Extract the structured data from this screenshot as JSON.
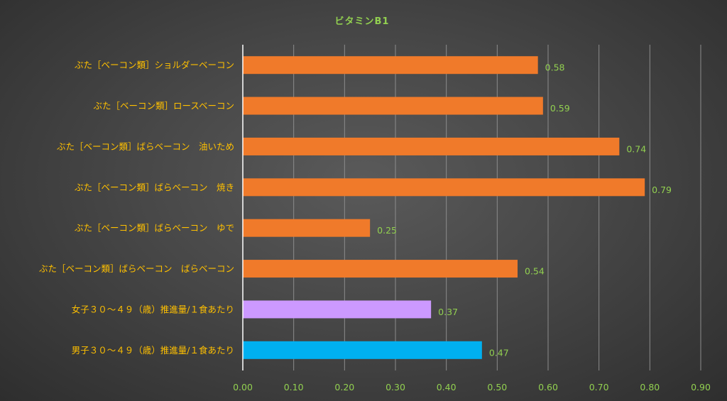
{
  "chart_data": {
    "type": "bar",
    "orientation": "horizontal",
    "title": "ビタミンB1",
    "categories": [
      "ぶた［ベーコン類］ショルダーベーコン",
      "ぶた［ベーコン類］ロースベーコン",
      "ぶた［ベーコン類］ばらベーコン　油いため",
      "ぶた［ベーコン類］ばらベーコン　焼き",
      "ぶた［ベーコン類］ばらベーコン　ゆで",
      "ぶた［ベーコン類］ばらベーコン　ばらベーコン",
      "女子３０～４９（歳）推進量/１食あたり",
      "男子３０～４９（歳）推進量/１食あたり"
    ],
    "values": [
      0.58,
      0.59,
      0.74,
      0.79,
      0.25,
      0.54,
      0.37,
      0.47
    ],
    "data_labels": [
      "0.58",
      "0.59",
      "0.74",
      "0.79",
      "0.25",
      "0.54",
      "0.37",
      "0.47"
    ],
    "bar_colors": [
      "#f07a2a",
      "#f07a2a",
      "#f07a2a",
      "#f07a2a",
      "#f07a2a",
      "#f07a2a",
      "#cc99ff",
      "#00b0f0"
    ],
    "xlim": [
      0,
      0.9
    ],
    "x_ticks": [
      "0.00",
      "0.10",
      "0.20",
      "0.30",
      "0.40",
      "0.50",
      "0.60",
      "0.70",
      "0.80",
      "0.90"
    ],
    "grid": "vertical",
    "legend": "none",
    "colors": {
      "title": "#92d050",
      "category_labels": "#ffc000",
      "tick_labels": "#92d050",
      "data_labels": "#92d050",
      "gridlines": "#8c8c8c",
      "axis_line": "#ffffff"
    }
  }
}
